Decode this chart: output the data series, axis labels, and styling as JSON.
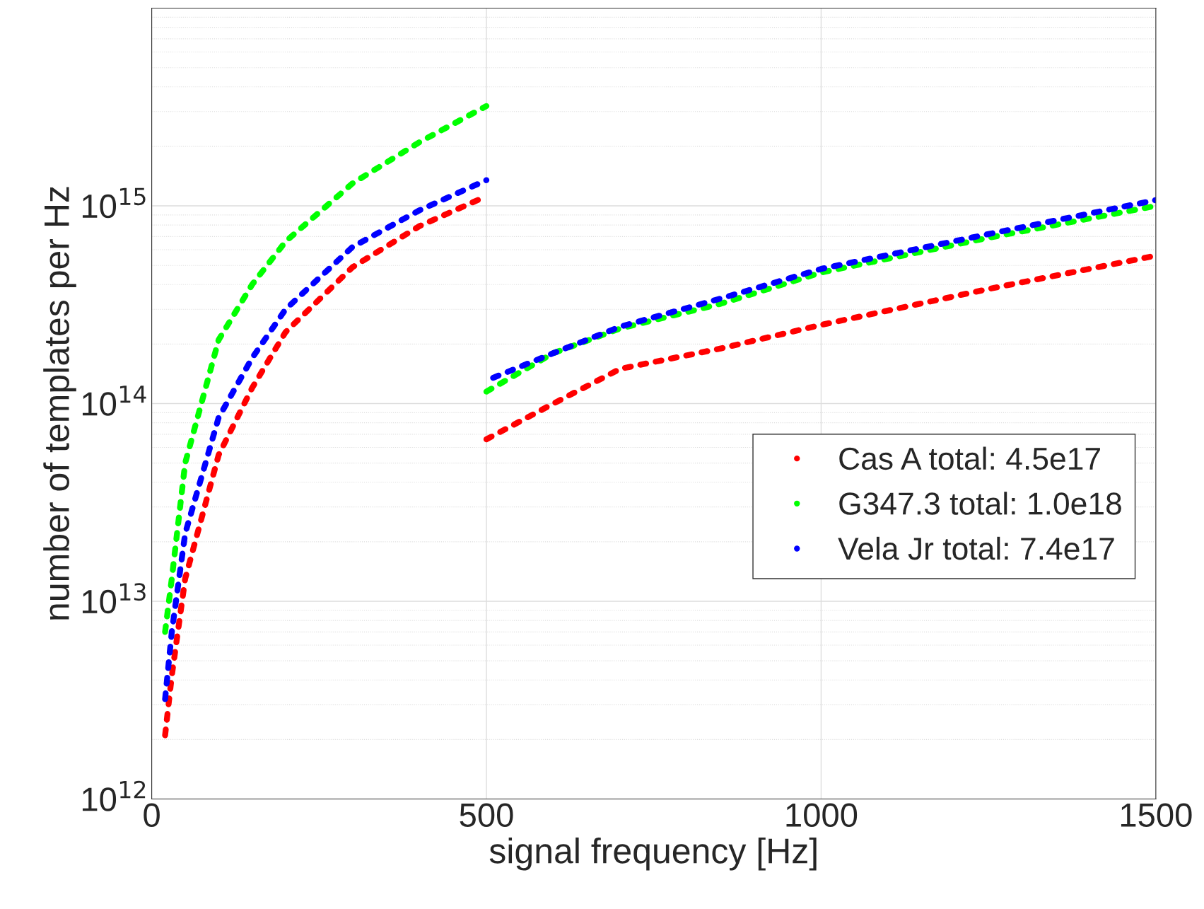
{
  "chart_data": {
    "type": "line",
    "xlabel": "signal frequency [Hz]",
    "ylabel": "number of templates per Hz",
    "log": "y",
    "grid": true,
    "legend": "right",
    "line_style": "dotted",
    "xlim": [
      0,
      1500
    ],
    "xticks": [
      0,
      500,
      1000,
      1500
    ],
    "ylim": [
      1000000000000.0,
      1e+16
    ],
    "yticks": [
      {
        "value": 1000000000000.0,
        "label": "10$^{12}$"
      },
      {
        "value": 10000000000000.0,
        "label": "10$^{13}$"
      },
      {
        "value": 100000000000000.0,
        "label": "10$^{14}$"
      },
      {
        "value": 1000000000000000.0,
        "label": "10$^{15}$"
      }
    ],
    "series": [
      {
        "name": "Cas A total: 4.5e17",
        "color": "#ff0000",
        "x": [
          20,
          30,
          50,
          100,
          150,
          200,
          300,
          400,
          500
        ],
        "values": [
          2100000000000.0,
          4200000000000.0,
          13000000000000.0,
          55000000000000.0,
          120000000000000.0,
          230000000000000.0,
          490000000000000.0,
          790000000000000.0,
          1120000000000000.0
        ]
      },
      {
        "name": "G347.3 total: 1.0e18",
        "color": "#00ff00",
        "x": [
          20,
          30,
          50,
          100,
          150,
          200,
          300,
          400,
          500
        ],
        "values": [
          7000000000000.0,
          13000000000000.0,
          50000000000000.0,
          210000000000000.0,
          400000000000000.0,
          660000000000000.0,
          1300000000000000.0,
          2100000000000000.0,
          3200000000000000.0
        ]
      },
      {
        "name": "Vela Jr total: 7.4e17",
        "color": "#0000ff",
        "x": [
          20,
          30,
          50,
          100,
          150,
          200,
          300,
          400,
          500
        ],
        "values": [
          3200000000000.0,
          7000000000000.0,
          22000000000000.0,
          85000000000000.0,
          170000000000000.0,
          300000000000000.0,
          620000000000000.0,
          950000000000000.0,
          1350000000000000.0
        ]
      },
      {
        "color": "#ff0000",
        "x": [
          500,
          600,
          700,
          850,
          1000,
          1250,
          1500
        ],
        "values": [
          66000000000000.0,
          100000000000000.0,
          150000000000000.0,
          190000000000000.0,
          250000000000000.0,
          380000000000000.0,
          560000000000000.0
        ]
      },
      {
        "color": "#00ff00",
        "x": [
          500,
          600,
          700,
          850,
          1000,
          1250,
          1500
        ],
        "values": [
          115000000000000.0,
          180000000000000.0,
          240000000000000.0,
          320000000000000.0,
          460000000000000.0,
          690000000000000.0,
          1000000000000000.0
        ]
      },
      {
        "color": "#0000ff",
        "x": [
          510,
          600,
          700,
          850,
          1000,
          1250,
          1500
        ],
        "values": [
          135000000000000.0,
          180000000000000.0,
          245000000000000.0,
          340000000000000.0,
          480000000000000.0,
          720000000000000.0,
          1070000000000000.0
        ]
      }
    ]
  }
}
